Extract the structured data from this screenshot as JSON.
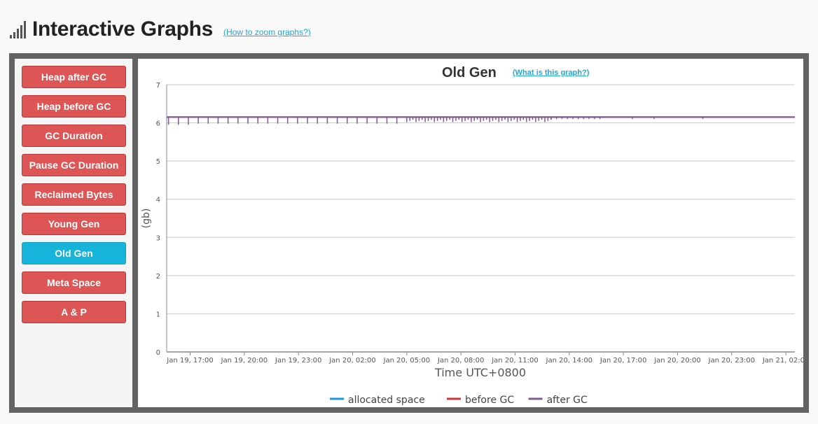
{
  "header": {
    "icon": "signal-bars-icon",
    "title": "Interactive Graphs",
    "help_link": "(How to zoom graphs?)"
  },
  "nav": [
    {
      "label": "Heap after GC",
      "active": false
    },
    {
      "label": "Heap before GC",
      "active": false
    },
    {
      "label": "GC Duration",
      "active": false
    },
    {
      "label": "Pause GC Duration",
      "active": false
    },
    {
      "label": "Reclaimed Bytes",
      "active": false
    },
    {
      "label": "Young Gen",
      "active": false
    },
    {
      "label": "Old Gen",
      "active": true
    },
    {
      "label": "Meta Space",
      "active": false
    },
    {
      "label": "A & P",
      "active": false
    }
  ],
  "colors": {
    "nav": "#dd5555",
    "nav_active": "#16b3da"
  },
  "chart": {
    "title": "Old Gen",
    "help_link": "(What is this graph?)"
  },
  "chart_data": {
    "type": "line",
    "title": "Old Gen",
    "xlabel": "Time UTC+0800",
    "ylabel": "(gb)",
    "ylim": [
      0,
      7
    ],
    "yticks": [
      0,
      1,
      2,
      3,
      4,
      5,
      6,
      7
    ],
    "xticks": [
      "Jan 19, 17:00",
      "Jan 19, 20:00",
      "Jan 19, 23:00",
      "Jan 20, 02:00",
      "Jan 20, 05:00",
      "Jan 20, 08:00",
      "Jan 20, 11:00",
      "Jan 20, 14:00",
      "Jan 20, 17:00",
      "Jan 20, 20:00",
      "Jan 20, 23:00",
      "Jan 21, 02:00"
    ],
    "xlim_hours_from_first_tick": [
      -1.3,
      33.5
    ],
    "grid": true,
    "legend_position": "bottom",
    "series": [
      {
        "name": "allocated space",
        "color": "#1b95e0",
        "value": 6.15
      },
      {
        "name": "before GC",
        "color": "#d23434",
        "value": 6.15
      },
      {
        "name": "after GC",
        "color": "#7c5a94",
        "value": 6.15,
        "gc_dip_min": 5.95,
        "gc_dip_max": 6.1
      }
    ]
  }
}
